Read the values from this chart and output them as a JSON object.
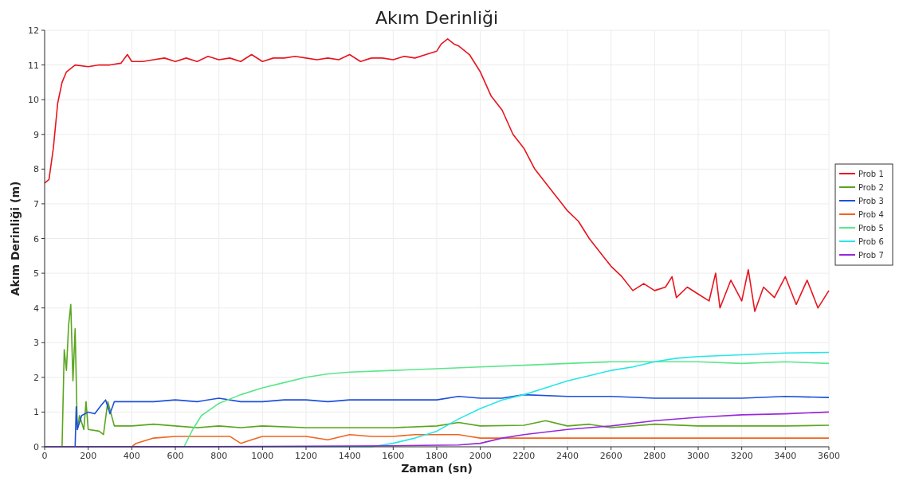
{
  "chart_data": {
    "type": "line",
    "title": "Akım Derinliği",
    "xlabel": "Zaman (sn)",
    "ylabel": "Akım Derinliği (m)",
    "xlim": [
      0,
      3600
    ],
    "xticks": [
      0,
      200,
      400,
      600,
      800,
      1000,
      1200,
      1400,
      1600,
      1800,
      2000,
      2200,
      2400,
      2600,
      2800,
      3000,
      3200,
      3400,
      3600
    ],
    "ylim": [
      0,
      12
    ],
    "yticks": [
      0,
      1,
      2,
      3,
      4,
      5,
      6,
      7,
      8,
      9,
      10,
      11,
      12
    ],
    "grid": true,
    "legend": "right",
    "marker": "none",
    "line_style": "solid",
    "series": [
      {
        "name": "Prob 1",
        "color": "#e8141e",
        "x": [
          0,
          20,
          40,
          60,
          80,
          100,
          140,
          200,
          250,
          300,
          350,
          380,
          400,
          450,
          500,
          550,
          600,
          650,
          700,
          750,
          800,
          850,
          900,
          950,
          1000,
          1050,
          1100,
          1150,
          1200,
          1250,
          1300,
          1350,
          1400,
          1450,
          1500,
          1550,
          1600,
          1650,
          1700,
          1750,
          1800,
          1820,
          1850,
          1880,
          1900,
          1950,
          2000,
          2050,
          2100,
          2150,
          2200,
          2250,
          2300,
          2350,
          2400,
          2450,
          2500,
          2550,
          2600,
          2650,
          2700,
          2750,
          2800,
          2850,
          2880,
          2900,
          2950,
          3000,
          3050,
          3080,
          3100,
          3150,
          3200,
          3230,
          3260,
          3300,
          3350,
          3400,
          3450,
          3500,
          3550,
          3600
        ],
        "values": [
          7.6,
          7.7,
          8.6,
          9.9,
          10.5,
          10.8,
          11.0,
          10.95,
          11.0,
          11.0,
          11.05,
          11.3,
          11.1,
          11.1,
          11.15,
          11.2,
          11.1,
          11.2,
          11.1,
          11.25,
          11.15,
          11.2,
          11.1,
          11.3,
          11.1,
          11.2,
          11.2,
          11.25,
          11.2,
          11.15,
          11.2,
          11.15,
          11.3,
          11.1,
          11.2,
          11.2,
          11.15,
          11.25,
          11.2,
          11.3,
          11.4,
          11.6,
          11.75,
          11.6,
          11.55,
          11.3,
          10.8,
          10.1,
          9.7,
          9.0,
          8.6,
          8.0,
          7.6,
          7.2,
          6.8,
          6.5,
          6.0,
          5.6,
          5.2,
          4.9,
          4.5,
          4.7,
          4.5,
          4.6,
          4.9,
          4.3,
          4.6,
          4.4,
          4.2,
          5.0,
          4.0,
          4.8,
          4.2,
          5.1,
          3.9,
          4.6,
          4.3,
          4.9,
          4.1,
          4.8,
          4.0,
          4.5
        ]
      },
      {
        "name": "Prob 2",
        "color": "#5aa51e",
        "x": [
          0,
          80,
          90,
          100,
          110,
          120,
          130,
          140,
          150,
          160,
          180,
          190,
          200,
          250,
          270,
          290,
          320,
          400,
          500,
          600,
          700,
          800,
          900,
          1000,
          1200,
          1400,
          1600,
          1800,
          1900,
          2000,
          2200,
          2300,
          2400,
          2500,
          2600,
          2800,
          3000,
          3200,
          3400,
          3600
        ],
        "values": [
          0,
          0,
          2.8,
          2.2,
          3.5,
          4.1,
          1.9,
          3.4,
          0.5,
          0.9,
          0.5,
          1.3,
          0.5,
          0.45,
          0.35,
          1.3,
          0.6,
          0.6,
          0.65,
          0.6,
          0.55,
          0.6,
          0.55,
          0.6,
          0.55,
          0.55,
          0.55,
          0.6,
          0.7,
          0.6,
          0.62,
          0.75,
          0.6,
          0.65,
          0.55,
          0.65,
          0.6,
          0.6,
          0.6,
          0.62
        ]
      },
      {
        "name": "Prob 3",
        "color": "#1e50dc",
        "x": [
          0,
          140,
          145,
          150,
          170,
          200,
          230,
          260,
          280,
          300,
          320,
          400,
          500,
          600,
          700,
          800,
          900,
          1000,
          1100,
          1200,
          1300,
          1400,
          1500,
          1600,
          1800,
          1900,
          2000,
          2100,
          2200,
          2400,
          2600,
          2800,
          3000,
          3200,
          3400,
          3600
        ],
        "values": [
          0,
          0,
          1.15,
          0.5,
          0.9,
          1.0,
          0.95,
          1.2,
          1.35,
          0.95,
          1.3,
          1.3,
          1.3,
          1.35,
          1.3,
          1.4,
          1.3,
          1.3,
          1.35,
          1.35,
          1.3,
          1.35,
          1.35,
          1.35,
          1.35,
          1.45,
          1.4,
          1.4,
          1.5,
          1.45,
          1.45,
          1.4,
          1.4,
          1.4,
          1.45,
          1.42
        ]
      },
      {
        "name": "Prob 4",
        "color": "#f0641e",
        "x": [
          0,
          400,
          420,
          500,
          600,
          700,
          800,
          850,
          900,
          950,
          1000,
          1200,
          1300,
          1400,
          1500,
          1600,
          1700,
          1800,
          1900,
          1950,
          2000,
          2200,
          2400,
          2600,
          3000,
          3600
        ],
        "values": [
          0,
          0,
          0.1,
          0.25,
          0.3,
          0.3,
          0.3,
          0.3,
          0.1,
          0.2,
          0.3,
          0.3,
          0.2,
          0.35,
          0.3,
          0.3,
          0.35,
          0.35,
          0.35,
          0.3,
          0.25,
          0.25,
          0.25,
          0.25,
          0.25,
          0.25
        ]
      },
      {
        "name": "Prob 5",
        "color": "#5ae68c",
        "x": [
          0,
          640,
          680,
          720,
          800,
          900,
          1000,
          1100,
          1200,
          1300,
          1400,
          1600,
          1800,
          2000,
          2200,
          2400,
          2600,
          2800,
          3000,
          3200,
          3400,
          3600
        ],
        "values": [
          0,
          0,
          0.5,
          0.9,
          1.25,
          1.5,
          1.7,
          1.85,
          2.0,
          2.1,
          2.15,
          2.2,
          2.25,
          2.3,
          2.35,
          2.4,
          2.45,
          2.45,
          2.45,
          2.4,
          2.45,
          2.4
        ]
      },
      {
        "name": "Prob 6",
        "color": "#28e6e6",
        "x": [
          0,
          1500,
          1600,
          1700,
          1800,
          1900,
          2000,
          2100,
          2200,
          2300,
          2400,
          2500,
          2600,
          2700,
          2800,
          2900,
          3000,
          3200,
          3400,
          3600
        ],
        "values": [
          0,
          0,
          0.1,
          0.25,
          0.45,
          0.8,
          1.1,
          1.35,
          1.5,
          1.7,
          1.9,
          2.05,
          2.2,
          2.3,
          2.45,
          2.55,
          2.6,
          2.65,
          2.7,
          2.72
        ]
      },
      {
        "name": "Prob 7",
        "color": "#9628dc",
        "x": [
          0,
          1000,
          1600,
          1900,
          2000,
          2100,
          2200,
          2400,
          2600,
          2800,
          3000,
          3200,
          3400,
          3600
        ],
        "values": [
          0,
          0.01,
          0.03,
          0.05,
          0.1,
          0.25,
          0.35,
          0.5,
          0.6,
          0.75,
          0.85,
          0.92,
          0.95,
          1.0
        ]
      }
    ]
  }
}
